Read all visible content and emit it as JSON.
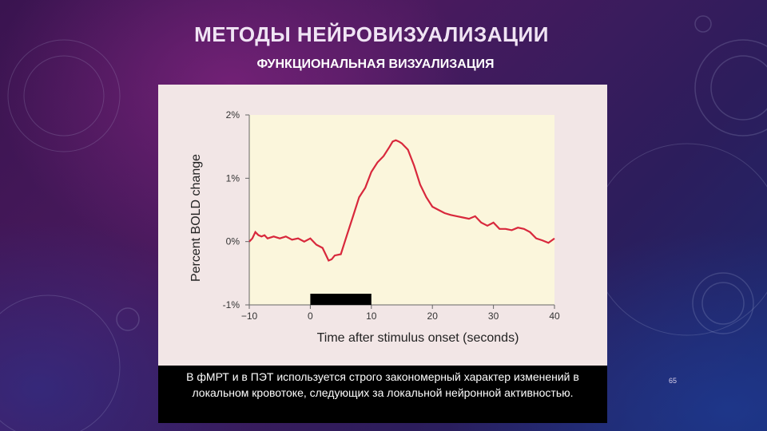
{
  "slide": {
    "title": "МЕТОДЫ НЕЙРОВИЗУАЛИЗАЦИИ",
    "subtitle": "ФУНКЦИОНАЛЬНАЯ ВИЗУАЛИЗАЦИЯ",
    "caption": "В фМРТ и в ПЭТ используется строго закономерный характер изменений в локальном кровотоке, следующих за локальной нейронной активностью.",
    "page_number": "65"
  },
  "colors": {
    "plot_background": "#fbf6dc",
    "line": "#d8283c",
    "stimulus_bar": "#000000"
  },
  "chart_data": {
    "type": "line",
    "title": "",
    "xlabel": "Time after stimulus onset (seconds)",
    "ylabel": "Percent BOLD change",
    "xlim": [
      -10,
      40
    ],
    "ylim": [
      -1,
      2
    ],
    "x_ticks": [
      -10,
      0,
      10,
      20,
      30,
      40
    ],
    "x_tick_labels": [
      "−10",
      "0",
      "10",
      "20",
      "30",
      "40"
    ],
    "y_ticks": [
      -1,
      0,
      1,
      2
    ],
    "y_tick_labels": [
      "-1%",
      "0%",
      "1%",
      "2%"
    ],
    "grid": false,
    "stimulus": {
      "start": 0,
      "end": 10
    },
    "series": [
      {
        "x": [
          -10,
          -9.5,
          -9,
          -8.5,
          -8,
          -7.5,
          -7,
          -6,
          -5,
          -4,
          -3,
          -2,
          -1,
          0,
          1,
          2,
          2.5,
          3,
          3.5,
          4,
          5,
          5.5,
          6,
          7,
          8,
          9,
          10,
          11,
          12,
          13,
          13.5,
          14,
          14.5,
          15,
          16,
          17,
          18,
          19,
          20,
          21,
          22,
          23,
          24,
          25,
          26,
          27,
          28,
          29,
          30,
          31,
          32,
          33,
          34,
          35,
          36,
          37,
          38,
          39,
          40
        ],
        "y": [
          0.0,
          0.05,
          0.15,
          0.1,
          0.08,
          0.1,
          0.05,
          0.08,
          0.05,
          0.08,
          0.03,
          0.05,
          0.0,
          0.05,
          -0.05,
          -0.1,
          -0.2,
          -0.3,
          -0.28,
          -0.22,
          -0.2,
          -0.05,
          0.1,
          0.4,
          0.7,
          0.85,
          1.1,
          1.25,
          1.35,
          1.5,
          1.58,
          1.6,
          1.58,
          1.55,
          1.45,
          1.2,
          0.9,
          0.7,
          0.55,
          0.5,
          0.45,
          0.42,
          0.4,
          0.38,
          0.36,
          0.4,
          0.3,
          0.25,
          0.3,
          0.2,
          0.2,
          0.18,
          0.22,
          0.2,
          0.15,
          0.05,
          0.02,
          -0.02,
          0.05
        ]
      }
    ]
  }
}
